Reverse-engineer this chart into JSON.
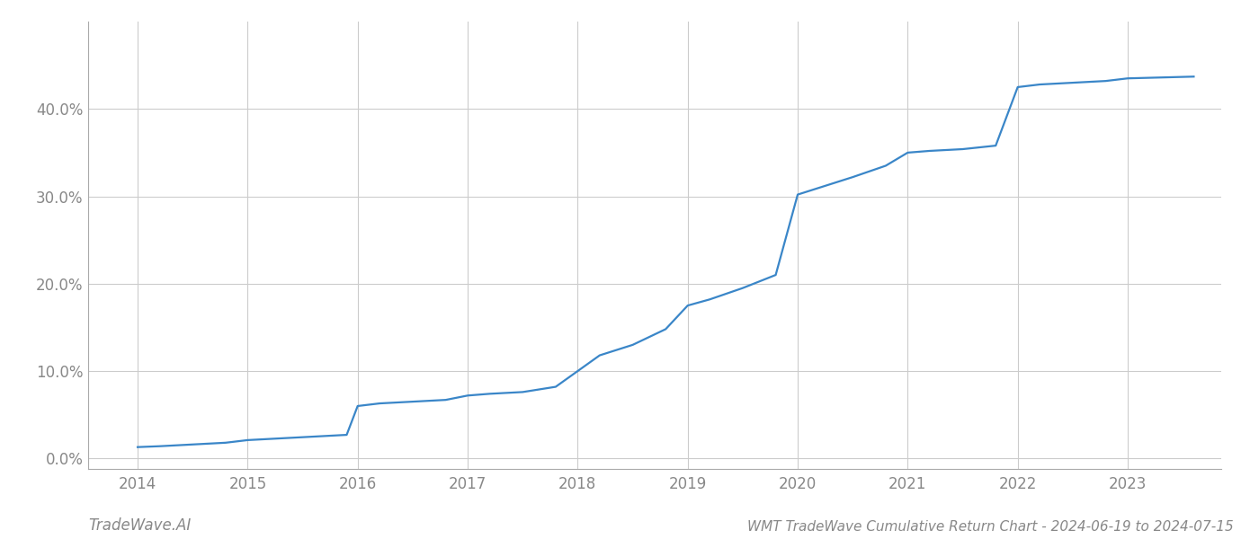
{
  "title": "WMT TradeWave Cumulative Return Chart - 2024-06-19 to 2024-07-15",
  "watermark": "TradeWave.AI",
  "line_color": "#3a86c8",
  "background_color": "#ffffff",
  "grid_color": "#cccccc",
  "years": [
    2014.0,
    2014.2,
    2014.5,
    2014.8,
    2015.0,
    2015.3,
    2015.6,
    2015.9,
    2016.0,
    2016.2,
    2016.5,
    2016.8,
    2017.0,
    2017.2,
    2017.5,
    2017.8,
    2018.0,
    2018.2,
    2018.5,
    2018.8,
    2019.0,
    2019.2,
    2019.5,
    2019.8,
    2020.0,
    2020.2,
    2020.5,
    2020.8,
    2021.0,
    2021.2,
    2021.5,
    2021.8,
    2022.0,
    2022.2,
    2022.5,
    2022.8,
    2023.0,
    2023.3,
    2023.6
  ],
  "values": [
    0.013,
    0.014,
    0.016,
    0.018,
    0.021,
    0.023,
    0.025,
    0.027,
    0.06,
    0.063,
    0.065,
    0.067,
    0.072,
    0.074,
    0.076,
    0.082,
    0.1,
    0.118,
    0.13,
    0.148,
    0.175,
    0.182,
    0.195,
    0.21,
    0.302,
    0.31,
    0.322,
    0.335,
    0.35,
    0.352,
    0.354,
    0.358,
    0.425,
    0.428,
    0.43,
    0.432,
    0.435,
    0.436,
    0.437
  ],
  "xlim": [
    2013.55,
    2023.85
  ],
  "ylim": [
    -0.012,
    0.5
  ],
  "xtick_labels": [
    "2014",
    "2015",
    "2016",
    "2017",
    "2018",
    "2019",
    "2020",
    "2021",
    "2022",
    "2023"
  ],
  "xtick_values": [
    2014,
    2015,
    2016,
    2017,
    2018,
    2019,
    2020,
    2021,
    2022,
    2023
  ],
  "ytick_values": [
    0.0,
    0.1,
    0.2,
    0.3,
    0.4
  ],
  "ytick_labels": [
    "0.0%",
    "10.0%",
    "20.0%",
    "30.0%",
    "40.0%"
  ],
  "line_width": 1.6,
  "title_fontsize": 11,
  "tick_fontsize": 12,
  "watermark_fontsize": 12
}
